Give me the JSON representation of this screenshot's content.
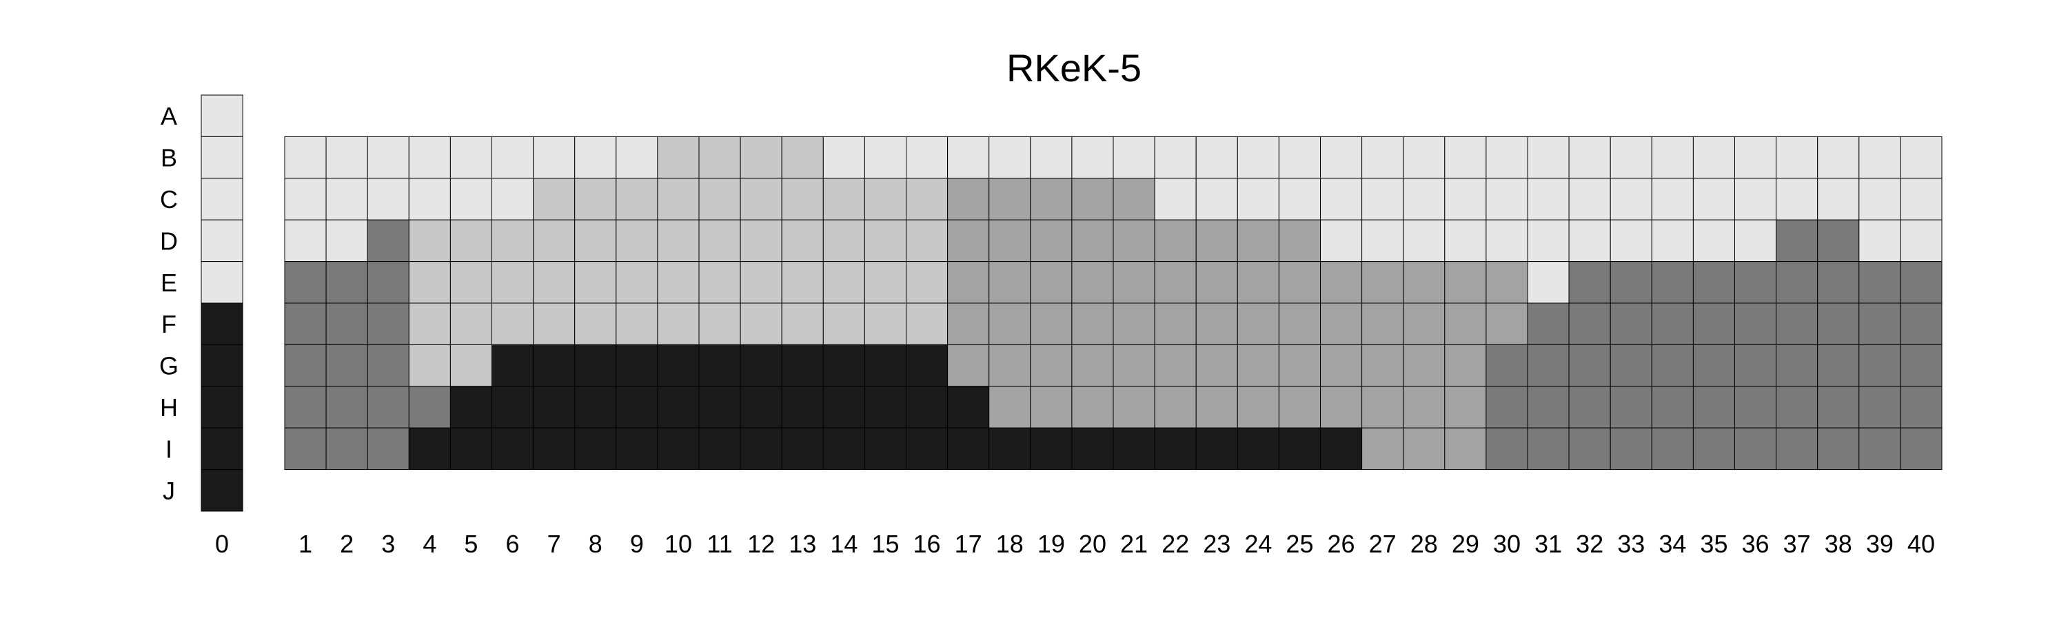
{
  "chart_data": {
    "type": "heatmap",
    "title": "RKeK-5",
    "row_labels": [
      "A",
      "B",
      "C",
      "D",
      "E",
      "F",
      "G",
      "H",
      "I",
      "J"
    ],
    "reference_column": {
      "label": "0",
      "values": [
        1,
        1,
        1,
        1,
        1,
        5,
        5,
        5,
        5,
        5
      ]
    },
    "column_labels": [
      "1",
      "2",
      "3",
      "4",
      "5",
      "6",
      "7",
      "8",
      "9",
      "10",
      "11",
      "12",
      "13",
      "14",
      "15",
      "16",
      "17",
      "18",
      "19",
      "20",
      "21",
      "22",
      "23",
      "24",
      "25",
      "26",
      "27",
      "28",
      "29",
      "30",
      "31",
      "32",
      "33",
      "34",
      "35",
      "36",
      "37",
      "38",
      "39",
      "40"
    ],
    "rows": [
      "B",
      "C",
      "D",
      "E",
      "F",
      "G",
      "H",
      "I"
    ],
    "values": [
      [
        1,
        1,
        1,
        1,
        1,
        1,
        1,
        1,
        1,
        2,
        2,
        2,
        2,
        1,
        1,
        1,
        1,
        1,
        1,
        1,
        1,
        1,
        1,
        1,
        1,
        1,
        1,
        1,
        1,
        1,
        1,
        1,
        1,
        1,
        1,
        1,
        1,
        1,
        1,
        1
      ],
      [
        1,
        1,
        1,
        1,
        1,
        1,
        2,
        2,
        2,
        2,
        2,
        2,
        2,
        2,
        2,
        2,
        3,
        3,
        3,
        3,
        3,
        1,
        1,
        1,
        1,
        1,
        1,
        1,
        1,
        1,
        1,
        1,
        1,
        1,
        1,
        1,
        1,
        1,
        1,
        1
      ],
      [
        1,
        1,
        4,
        2,
        2,
        2,
        2,
        2,
        2,
        2,
        2,
        2,
        2,
        2,
        2,
        2,
        3,
        3,
        3,
        3,
        3,
        3,
        3,
        3,
        3,
        1,
        1,
        1,
        1,
        1,
        1,
        1,
        1,
        1,
        1,
        1,
        4,
        4,
        1,
        1
      ],
      [
        4,
        4,
        4,
        2,
        2,
        2,
        2,
        2,
        2,
        2,
        2,
        2,
        2,
        2,
        2,
        2,
        3,
        3,
        3,
        3,
        3,
        3,
        3,
        3,
        3,
        3,
        3,
        3,
        3,
        3,
        1,
        4,
        4,
        4,
        4,
        4,
        4,
        4,
        4,
        4
      ],
      [
        4,
        4,
        4,
        2,
        2,
        2,
        2,
        2,
        2,
        2,
        2,
        2,
        2,
        2,
        2,
        2,
        3,
        3,
        3,
        3,
        3,
        3,
        3,
        3,
        3,
        3,
        3,
        3,
        3,
        3,
        4,
        4,
        4,
        4,
        4,
        4,
        4,
        4,
        4,
        4
      ],
      [
        4,
        4,
        4,
        2,
        2,
        5,
        5,
        5,
        5,
        5,
        5,
        5,
        5,
        5,
        5,
        5,
        3,
        3,
        3,
        3,
        3,
        3,
        3,
        3,
        3,
        3,
        3,
        3,
        3,
        4,
        4,
        4,
        4,
        4,
        4,
        4,
        4,
        4,
        4,
        4
      ],
      [
        4,
        4,
        4,
        4,
        5,
        5,
        5,
        5,
        5,
        5,
        5,
        5,
        5,
        5,
        5,
        5,
        5,
        3,
        3,
        3,
        3,
        3,
        3,
        3,
        3,
        3,
        3,
        3,
        3,
        4,
        4,
        4,
        4,
        4,
        4,
        4,
        4,
        4,
        4,
        4
      ],
      [
        4,
        4,
        4,
        5,
        5,
        5,
        5,
        5,
        5,
        5,
        5,
        5,
        5,
        5,
        5,
        5,
        5,
        5,
        5,
        5,
        5,
        5,
        5,
        5,
        5,
        5,
        3,
        3,
        3,
        4,
        4,
        4,
        4,
        4,
        4,
        4,
        4,
        4,
        4,
        4
      ]
    ],
    "level_colors": {
      "1": "#e6e6e6",
      "2": "#c8c8c8",
      "3": "#a3a3a3",
      "4": "#7a7a7a",
      "5": "#1a1a1a"
    },
    "grid": true,
    "legend": "none"
  }
}
